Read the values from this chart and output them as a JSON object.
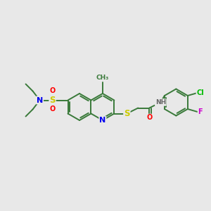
{
  "bg_color": "#e8e8e8",
  "bond_color": "#3a7a3a",
  "bond_width": 1.4,
  "atom_colors": {
    "N": "#0000ee",
    "S": "#cccc00",
    "O": "#ff0000",
    "Cl": "#00bb00",
    "F": "#cc00cc",
    "H": "#666666",
    "C": "#3a7a3a"
  },
  "font_size": 7.0
}
